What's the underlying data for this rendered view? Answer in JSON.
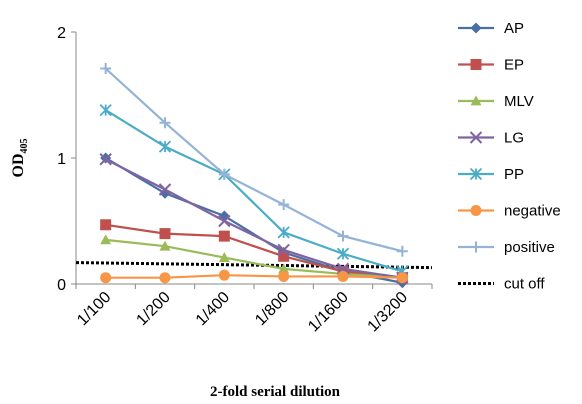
{
  "chart_data": {
    "type": "line",
    "title": "",
    "xlabel": "2-fold serial dilution",
    "ylabel_main": "OD",
    "ylabel_sub": "405",
    "ylim": [
      0,
      2
    ],
    "yticks": [
      "0",
      "1",
      "2"
    ],
    "categories": [
      "1/100",
      "1/200",
      "1/400",
      "1/800",
      "1/1600",
      "1/3200"
    ],
    "grid": false,
    "legend_position": "right",
    "series": [
      {
        "name": "AP",
        "marker": "diamond",
        "color": "#4a6fa5",
        "values": [
          1.0,
          0.72,
          0.54,
          0.25,
          0.1,
          0.01
        ]
      },
      {
        "name": "EP",
        "marker": "square",
        "color": "#c0504d",
        "values": [
          0.47,
          0.4,
          0.38,
          0.22,
          0.1,
          0.05
        ]
      },
      {
        "name": "MLV",
        "marker": "triangle",
        "color": "#9bbb59",
        "values": [
          0.35,
          0.3,
          0.21,
          0.12,
          0.08,
          0.05
        ]
      },
      {
        "name": "LG",
        "marker": "x",
        "color": "#8064a2",
        "values": [
          0.99,
          0.75,
          0.5,
          0.27,
          0.12,
          0.05
        ]
      },
      {
        "name": "PP",
        "marker": "star",
        "color": "#4bacc6",
        "values": [
          1.38,
          1.09,
          0.87,
          0.41,
          0.24,
          0.1
        ]
      },
      {
        "name": "negative",
        "marker": "circle",
        "color": "#f79646",
        "values": [
          0.05,
          0.05,
          0.07,
          0.06,
          0.06,
          0.05
        ]
      },
      {
        "name": "positive",
        "marker": "plus",
        "color": "#95b3d7",
        "values": [
          1.71,
          1.28,
          0.87,
          0.63,
          0.38,
          0.26
        ]
      }
    ],
    "cutoff": {
      "name": "cut off",
      "start": 0.17,
      "end": 0.13,
      "color": "#000000",
      "style": "dotted"
    }
  }
}
